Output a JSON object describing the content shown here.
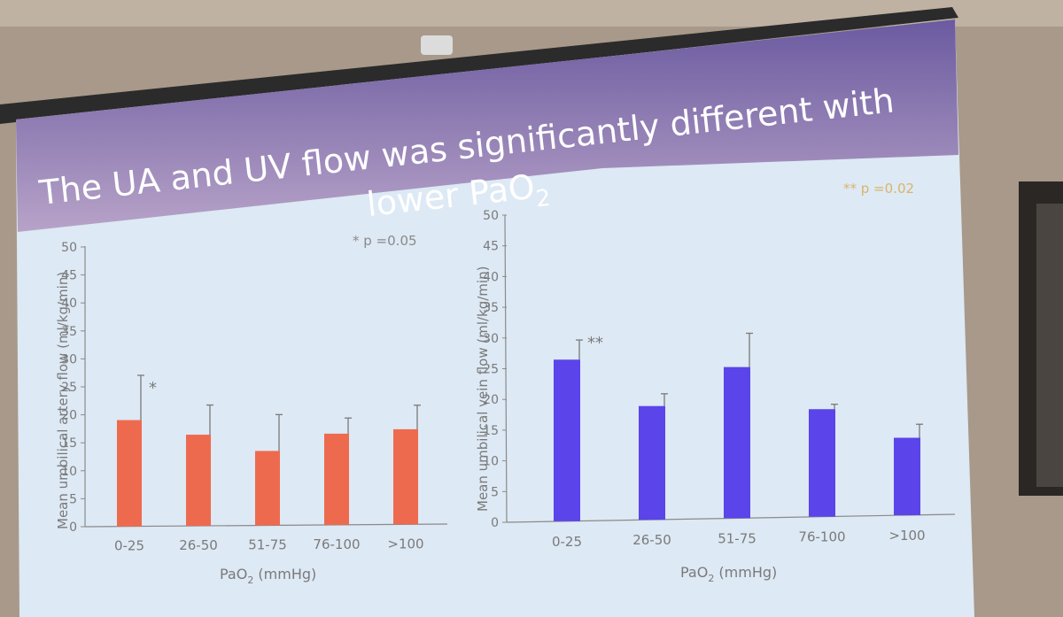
{
  "slide": {
    "title_line1": "The UA and UV flow was significantly different with",
    "title_line2_prefix": "lower PaO",
    "title_line2_sub": "2",
    "colors": {
      "title_band_top": "#6b5aa0",
      "title_band_bottom": "#b7a3c8",
      "slide_bg": "#dde9f4",
      "ua_bar": "#ee6a4f",
      "uv_bar": "#5a44ea"
    }
  },
  "chart_data": [
    {
      "type": "bar",
      "note": "* p =0.05",
      "ylabel": "Mean umbilical artery flow (ml/kg/min)",
      "xlabel_prefix": "PaO",
      "xlabel_sub": "2",
      "xlabel_suffix": " (mmHg)",
      "categories": [
        "0-25",
        "26-50",
        "51-75",
        "76-100",
        ">100"
      ],
      "values": [
        19,
        16.3,
        13.3,
        16.3,
        17
      ],
      "error": [
        8,
        5.3,
        6.5,
        2.8,
        4.3
      ],
      "annotations": [
        {
          "category": "0-25",
          "text": "*"
        }
      ],
      "ylim": [
        0,
        50
      ],
      "yticks": [
        "0",
        "5",
        "10",
        "15",
        "20",
        "25",
        "30",
        "35",
        "40",
        "45",
        "50"
      ],
      "grid": false
    },
    {
      "type": "bar",
      "note": "** p =0.02",
      "ylabel": "Mean umbilical vein flow (ml/kg/min)",
      "xlabel_prefix": "PaO",
      "xlabel_sub": "2",
      "xlabel_suffix": " (mmHg)",
      "categories": [
        "0-25",
        "26-50",
        "51-75",
        "76-100",
        ">100"
      ],
      "values": [
        26.3,
        18.5,
        24.6,
        17.5,
        12.6
      ],
      "error": [
        3.2,
        2,
        5.5,
        0.8,
        2.2
      ],
      "annotations": [
        {
          "category": "0-25",
          "text": "**"
        }
      ],
      "ylim": [
        0,
        50
      ],
      "yticks": [
        "0",
        "5",
        "10",
        "15",
        "20",
        "25",
        "30",
        "35",
        "40",
        "45",
        "50"
      ],
      "grid": false
    }
  ]
}
